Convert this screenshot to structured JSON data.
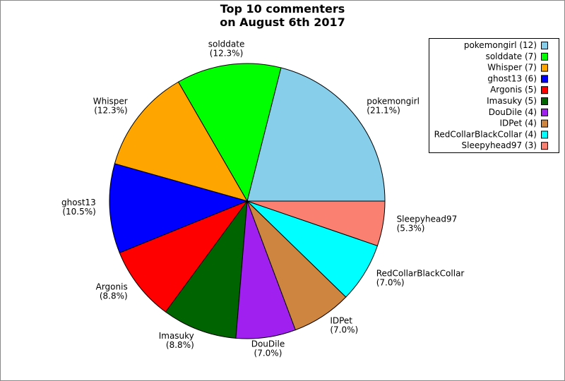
{
  "chart_data": {
    "type": "pie",
    "title": "Top 10 commenters\non August 6th 2017",
    "categories": [
      "pokemongirl",
      "solddate",
      "Whisper",
      "ghost13",
      "Argonis",
      "Imasuky",
      "DouDile",
      "IDPet",
      "RedCollarBlackCollar",
      "Sleepyhead97"
    ],
    "values": [
      12,
      7,
      7,
      6,
      5,
      5,
      4,
      4,
      4,
      3
    ],
    "value_labels": [
      "(21.1%)",
      "(12.3%)",
      "(12.3%)",
      "(10.5%)",
      "(8.8%)",
      "(8.8%)",
      "(7.0%)",
      "(7.0%)",
      "(7.0%)",
      "(5.3%)"
    ],
    "legend": [
      "pokemongirl (12)",
      "solddate (7)",
      "Whisper (7)",
      "ghost13 (6)",
      "Argonis (5)",
      "Imasuky (5)",
      "DouDile (4)",
      "IDPet (4)",
      "RedCollarBlackCollar (4)",
      "Sleepyhead97 (3)"
    ],
    "colors": [
      "#87ceeb",
      "#00ff00",
      "#ffa500",
      "#0000ff",
      "#ff0000",
      "#006400",
      "#a020f0",
      "#cd853f",
      "#00ffff",
      "#fa8072"
    ]
  }
}
